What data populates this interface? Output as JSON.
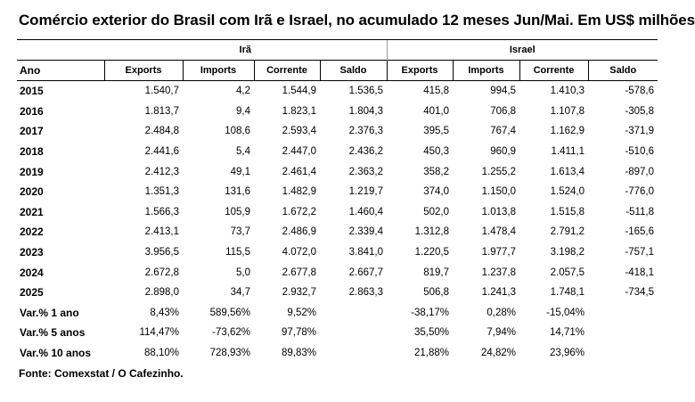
{
  "title": "Comércio exterior do Brasil com Irã e Israel, no acumulado 12 meses Jun/Mai. Em US$ milhões",
  "groups": {
    "iran": "Irã",
    "israel": "Israel"
  },
  "headers": [
    "Ano",
    "Exports",
    "Imports",
    "Corrente",
    "Saldo",
    "Exports",
    "Imports",
    "Corrente",
    "Saldo"
  ],
  "rows": [
    [
      "2015",
      "1.540,7",
      "4,2",
      "1.544,9",
      "1.536,5",
      "415,8",
      "994,5",
      "1.410,3",
      "-578,6"
    ],
    [
      "2016",
      "1.813,7",
      "9,4",
      "1.823,1",
      "1.804,3",
      "401,0",
      "706,8",
      "1.107,8",
      "-305,8"
    ],
    [
      "2017",
      "2.484,8",
      "108,6",
      "2.593,4",
      "2.376,3",
      "395,5",
      "767,4",
      "1.162,9",
      "-371,9"
    ],
    [
      "2018",
      "2.441,6",
      "5,4",
      "2.447,0",
      "2.436,2",
      "450,3",
      "960,9",
      "1.411,1",
      "-510,6"
    ],
    [
      "2019",
      "2.412,3",
      "49,1",
      "2.461,4",
      "2.363,2",
      "358,2",
      "1.255,2",
      "1.613,4",
      "-897,0"
    ],
    [
      "2020",
      "1.351,3",
      "131,6",
      "1.482,9",
      "1.219,7",
      "374,0",
      "1.150,0",
      "1.524,0",
      "-776,0"
    ],
    [
      "2021",
      "1.566,3",
      "105,9",
      "1.672,2",
      "1.460,4",
      "502,0",
      "1.013,8",
      "1.515,8",
      "-511,8"
    ],
    [
      "2022",
      "2.413,1",
      "73,7",
      "2.486,9",
      "2.339,4",
      "1.312,8",
      "1.478,4",
      "2.791,2",
      "-165,6"
    ],
    [
      "2023",
      "3.956,5",
      "115,5",
      "4.072,0",
      "3.841,0",
      "1.220,5",
      "1.977,7",
      "3.198,2",
      "-757,1"
    ],
    [
      "2024",
      "2.672,8",
      "5,0",
      "2.677,8",
      "2.667,7",
      "819,7",
      "1.237,8",
      "2.057,5",
      "-418,1"
    ],
    [
      "2025",
      "2.898,0",
      "34,7",
      "2.932,7",
      "2.863,3",
      "506,8",
      "1.241,3",
      "1.748,1",
      "-734,5"
    ],
    [
      "Var.% 1 ano",
      "8,43%",
      "589,56%",
      "9,52%",
      "",
      "-38,17%",
      "0,28%",
      "-15,04%",
      ""
    ],
    [
      "Var.% 5 anos",
      "114,47%",
      "-73,62%",
      "97,78%",
      "",
      "35,50%",
      "7,94%",
      "14,71%",
      ""
    ],
    [
      "Var.% 10 anos",
      "88,10%",
      "728,93%",
      "89,83%",
      "",
      "21,88%",
      "24,82%",
      "23,96%",
      ""
    ]
  ],
  "source": "Fonte: Comexstat / O Cafezinho."
}
